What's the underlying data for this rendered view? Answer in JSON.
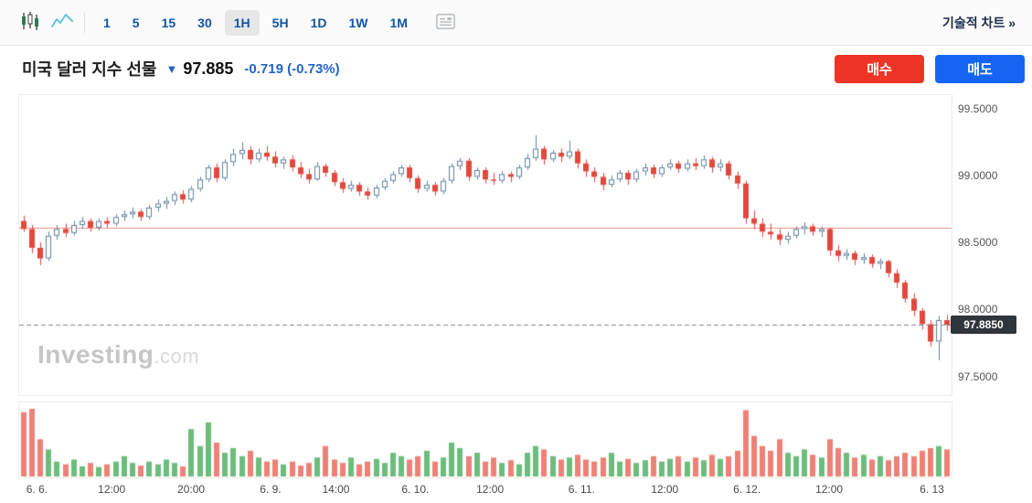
{
  "toolbar": {
    "timeframes": [
      "1",
      "5",
      "15",
      "30",
      "1H",
      "5H",
      "1D",
      "1W",
      "1M"
    ],
    "selected_timeframe": "1H",
    "chart_type_icons": [
      "candlestick-chart-icon",
      "line-chart-icon",
      "news-panel-icon"
    ],
    "technical_chart_link": "기술적 차트 »"
  },
  "instrument": {
    "name": "미국 달러 지수 선물",
    "direction": "▼",
    "last_price": "97.885",
    "change": "-0.719 (-0.73%)",
    "buy_label": "매수",
    "sell_label": "매도"
  },
  "watermark": {
    "main": "Investing",
    "suffix": ".com"
  },
  "price_badge": "97.8850",
  "colors": {
    "accent_blue": "#2563c9",
    "toolbar_blue": "#1155a3",
    "buy_red": "#ee3425",
    "sell_blue": "#1565f2",
    "candle_down": "#e2483d",
    "candle_up_fill": "#ffffff",
    "candle_up_border": "#5f82a0",
    "vol_up": "#6cbd7b",
    "vol_down": "#ee8176",
    "prev_close_line": "#f2948a",
    "last_price_line": "#80858e",
    "badge_bg": "#30343b"
  },
  "chart_data": {
    "type": "candlestick",
    "title": "미국 달러 지수 선물",
    "timeframe": "1H",
    "grid": false,
    "legend": false,
    "ylim": [
      97.36,
      99.6
    ],
    "y_ticks": [
      "99.5000",
      "99.0000",
      "98.5000",
      "98.0000",
      "97.5000"
    ],
    "y_tick_values": [
      99.5,
      99.0,
      98.5,
      98.0,
      97.5
    ],
    "prev_close": 98.61,
    "last_price": 97.885,
    "x_labels": [
      {
        "label": "6. 6.",
        "pos": 0.02
      },
      {
        "label": "12:00",
        "pos": 0.1
      },
      {
        "label": "20:00",
        "pos": 0.185
      },
      {
        "label": "6. 9.",
        "pos": 0.27
      },
      {
        "label": "14:00",
        "pos": 0.34
      },
      {
        "label": "6. 10.",
        "pos": 0.425
      },
      {
        "label": "12:00",
        "pos": 0.505
      },
      {
        "label": "6. 11.",
        "pos": 0.603
      },
      {
        "label": "12:00",
        "pos": 0.692
      },
      {
        "label": "6. 12.",
        "pos": 0.78
      },
      {
        "label": "12:00",
        "pos": 0.868
      },
      {
        "label": "6. 13",
        "pos": 0.978
      }
    ],
    "candles": [
      [
        98.66,
        98.7,
        98.58,
        98.6
      ],
      [
        98.6,
        98.63,
        98.42,
        98.46
      ],
      [
        98.46,
        98.5,
        98.33,
        98.38
      ],
      [
        98.38,
        98.58,
        98.36,
        98.55
      ],
      [
        98.55,
        98.63,
        98.52,
        98.6
      ],
      [
        98.6,
        98.64,
        98.54,
        98.57
      ],
      [
        98.57,
        98.66,
        98.55,
        98.63
      ],
      [
        98.63,
        98.69,
        98.6,
        98.66
      ],
      [
        98.66,
        98.68,
        98.58,
        98.61
      ],
      [
        98.61,
        98.68,
        98.59,
        98.66
      ],
      [
        98.66,
        98.69,
        98.61,
        98.64
      ],
      [
        98.64,
        98.71,
        98.62,
        98.69
      ],
      [
        98.69,
        98.74,
        98.66,
        98.71
      ],
      [
        98.71,
        98.76,
        98.68,
        98.73
      ],
      [
        98.73,
        98.75,
        98.66,
        98.69
      ],
      [
        98.69,
        98.78,
        98.67,
        98.76
      ],
      [
        98.76,
        98.82,
        98.73,
        98.79
      ],
      [
        98.79,
        98.84,
        98.75,
        98.81
      ],
      [
        98.81,
        98.88,
        98.78,
        98.86
      ],
      [
        98.86,
        98.89,
        98.79,
        98.82
      ],
      [
        98.82,
        98.92,
        98.8,
        98.9
      ],
      [
        98.9,
        98.99,
        98.88,
        98.97
      ],
      [
        98.97,
        99.08,
        98.95,
        99.06
      ],
      [
        99.06,
        99.09,
        98.95,
        98.98
      ],
      [
        98.98,
        99.12,
        98.96,
        99.1
      ],
      [
        99.1,
        99.2,
        99.07,
        99.16
      ],
      [
        99.16,
        99.25,
        99.12,
        99.19
      ],
      [
        99.19,
        99.22,
        99.08,
        99.12
      ],
      [
        99.12,
        99.2,
        99.1,
        99.17
      ],
      [
        99.17,
        99.22,
        99.11,
        99.14
      ],
      [
        99.14,
        99.18,
        99.06,
        99.09
      ],
      [
        99.09,
        99.14,
        99.05,
        99.12
      ],
      [
        99.12,
        99.15,
        99.03,
        99.06
      ],
      [
        99.06,
        99.1,
        98.98,
        99.01
      ],
      [
        99.01,
        99.05,
        98.94,
        98.97
      ],
      [
        98.97,
        99.1,
        98.96,
        99.07
      ],
      [
        99.07,
        99.09,
        98.99,
        99.02
      ],
      [
        99.02,
        99.04,
        98.92,
        98.95
      ],
      [
        98.95,
        98.98,
        98.87,
        98.9
      ],
      [
        98.9,
        98.96,
        98.88,
        98.93
      ],
      [
        98.93,
        98.95,
        98.85,
        98.88
      ],
      [
        98.88,
        98.91,
        98.82,
        98.85
      ],
      [
        98.85,
        98.93,
        98.83,
        98.91
      ],
      [
        98.91,
        98.98,
        98.89,
        98.96
      ],
      [
        98.96,
        99.03,
        98.94,
        99.01
      ],
      [
        99.01,
        99.08,
        98.99,
        99.06
      ],
      [
        99.06,
        99.08,
        98.95,
        98.98
      ],
      [
        98.98,
        99.0,
        98.87,
        98.9
      ],
      [
        98.9,
        98.96,
        98.88,
        98.93
      ],
      [
        98.93,
        98.95,
        98.85,
        98.88
      ],
      [
        98.88,
        98.98,
        98.86,
        98.96
      ],
      [
        98.96,
        99.09,
        98.94,
        99.07
      ],
      [
        99.07,
        99.13,
        99.04,
        99.11
      ],
      [
        99.11,
        99.13,
        98.96,
        98.99
      ],
      [
        98.99,
        99.06,
        98.97,
        99.04
      ],
      [
        99.04,
        99.06,
        98.94,
        98.97
      ],
      [
        98.97,
        99.02,
        98.93,
        98.96
      ],
      [
        98.96,
        99.03,
        98.94,
        99.01
      ],
      [
        99.01,
        99.03,
        98.95,
        98.99
      ],
      [
        98.99,
        99.08,
        98.97,
        99.06
      ],
      [
        99.06,
        99.16,
        99.04,
        99.13
      ],
      [
        99.13,
        99.3,
        99.11,
        99.2
      ],
      [
        99.2,
        99.22,
        99.08,
        99.12
      ],
      [
        99.12,
        99.19,
        99.1,
        99.17
      ],
      [
        99.17,
        99.2,
        99.1,
        99.14
      ],
      [
        99.14,
        99.26,
        99.12,
        99.18
      ],
      [
        99.18,
        99.2,
        99.05,
        99.09
      ],
      [
        99.09,
        99.12,
        98.99,
        99.03
      ],
      [
        99.03,
        99.06,
        98.95,
        98.99
      ],
      [
        98.99,
        99.02,
        98.89,
        98.93
      ],
      [
        98.93,
        99.0,
        98.91,
        98.97
      ],
      [
        98.97,
        99.04,
        98.95,
        99.02
      ],
      [
        99.02,
        99.04,
        98.93,
        98.97
      ],
      [
        98.97,
        99.05,
        98.95,
        99.03
      ],
      [
        99.03,
        99.09,
        99.0,
        99.06
      ],
      [
        99.06,
        99.08,
        98.98,
        99.01
      ],
      [
        99.01,
        99.08,
        98.99,
        99.06
      ],
      [
        99.06,
        99.12,
        99.04,
        99.09
      ],
      [
        99.09,
        99.11,
        99.02,
        99.05
      ],
      [
        99.05,
        99.12,
        99.03,
        99.09
      ],
      [
        99.09,
        99.13,
        99.04,
        99.07
      ],
      [
        99.07,
        99.15,
        99.05,
        99.12
      ],
      [
        99.12,
        99.14,
        99.02,
        99.06
      ],
      [
        99.06,
        99.12,
        99.03,
        99.09
      ],
      [
        99.09,
        99.11,
        98.97,
        99.0
      ],
      [
        99.0,
        99.03,
        98.9,
        98.94
      ],
      [
        98.94,
        98.96,
        98.64,
        98.68
      ],
      [
        98.68,
        98.74,
        98.6,
        98.64
      ],
      [
        98.64,
        98.68,
        98.54,
        98.58
      ],
      [
        98.58,
        98.64,
        98.52,
        98.56
      ],
      [
        98.56,
        98.6,
        98.48,
        98.52
      ],
      [
        98.52,
        98.58,
        98.49,
        98.55
      ],
      [
        98.55,
        98.62,
        98.53,
        98.6
      ],
      [
        98.6,
        98.65,
        98.56,
        98.62
      ],
      [
        98.62,
        98.64,
        98.55,
        98.58
      ],
      [
        98.58,
        98.62,
        98.54,
        98.6
      ],
      [
        98.6,
        98.61,
        98.4,
        98.44
      ],
      [
        98.44,
        98.48,
        98.36,
        98.4
      ],
      [
        98.4,
        98.45,
        98.37,
        98.42
      ],
      [
        98.42,
        98.44,
        98.33,
        98.37
      ],
      [
        98.37,
        98.42,
        98.34,
        98.39
      ],
      [
        98.39,
        98.41,
        98.31,
        98.34
      ],
      [
        98.34,
        98.38,
        98.3,
        98.36
      ],
      [
        98.36,
        98.37,
        98.24,
        98.27
      ],
      [
        98.27,
        98.3,
        98.16,
        98.2
      ],
      [
        98.2,
        98.22,
        98.05,
        98.08
      ],
      [
        98.08,
        98.12,
        97.95,
        97.99
      ],
      [
        97.99,
        98.01,
        97.85,
        97.89
      ],
      [
        97.89,
        97.92,
        97.72,
        97.76
      ],
      [
        97.76,
        97.95,
        97.62,
        97.92
      ],
      [
        97.92,
        97.96,
        97.84,
        97.885
      ]
    ],
    "volumes": [
      0.95,
      1.0,
      0.55,
      0.4,
      0.22,
      0.18,
      0.25,
      0.15,
      0.2,
      0.14,
      0.18,
      0.22,
      0.3,
      0.2,
      0.16,
      0.22,
      0.18,
      0.25,
      0.2,
      0.15,
      0.7,
      0.45,
      0.8,
      0.5,
      0.35,
      0.42,
      0.3,
      0.38,
      0.28,
      0.22,
      0.25,
      0.18,
      0.22,
      0.16,
      0.2,
      0.28,
      0.45,
      0.25,
      0.2,
      0.28,
      0.18,
      0.22,
      0.26,
      0.2,
      0.35,
      0.3,
      0.25,
      0.3,
      0.38,
      0.22,
      0.28,
      0.5,
      0.42,
      0.3,
      0.35,
      0.22,
      0.28,
      0.2,
      0.24,
      0.18,
      0.35,
      0.45,
      0.4,
      0.3,
      0.25,
      0.28,
      0.32,
      0.25,
      0.22,
      0.28,
      0.35,
      0.22,
      0.26,
      0.2,
      0.24,
      0.3,
      0.22,
      0.26,
      0.3,
      0.22,
      0.28,
      0.24,
      0.32,
      0.26,
      0.3,
      0.38,
      0.98,
      0.6,
      0.45,
      0.38,
      0.55,
      0.35,
      0.3,
      0.4,
      0.32,
      0.28,
      0.55,
      0.42,
      0.35,
      0.28,
      0.32,
      0.25,
      0.3,
      0.24,
      0.3,
      0.35,
      0.3,
      0.38,
      0.42,
      0.45,
      0.4
    ]
  }
}
